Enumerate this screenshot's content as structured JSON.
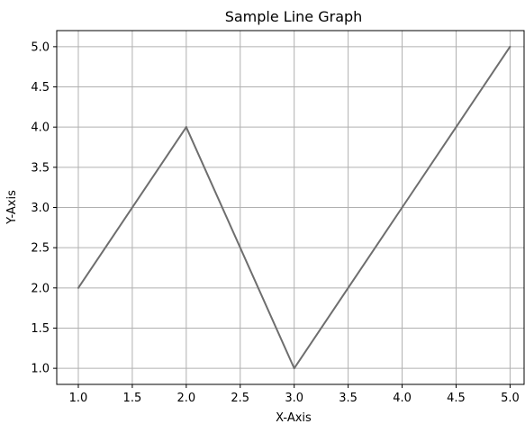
{
  "chart_data": {
    "type": "line",
    "title": "Sample Line Graph",
    "xlabel": "X-Axis",
    "ylabel": "Y-Axis",
    "x": [
      1,
      2,
      3,
      4,
      5
    ],
    "series": [
      {
        "values": [
          2,
          4,
          1,
          3,
          5
        ],
        "color": "#6e6e6e"
      }
    ],
    "xlim": [
      0.8,
      5.13
    ],
    "ylim": [
      0.8,
      5.2
    ],
    "xticks": [
      "1.0",
      "1.5",
      "2.0",
      "2.5",
      "3.0",
      "3.5",
      "4.0",
      "4.5",
      "5.0"
    ],
    "yticks": [
      "1.0",
      "1.5",
      "2.0",
      "2.5",
      "3.0",
      "3.5",
      "4.0",
      "4.5",
      "5.0"
    ],
    "grid": true,
    "grid_color": "#b0b0b0",
    "legend": "none"
  }
}
